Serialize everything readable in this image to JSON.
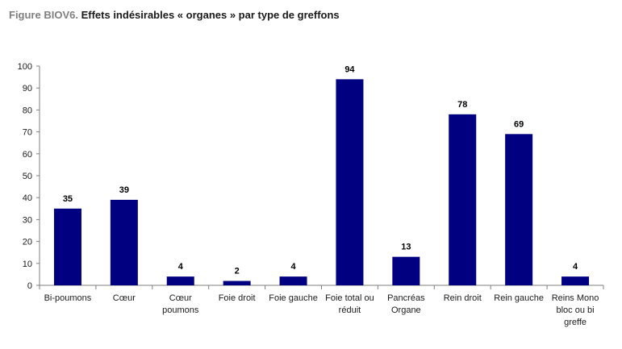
{
  "header": {
    "prefix": "Figure BIOV6.",
    "title": "Effets indésirables « organes » par type de greffons"
  },
  "chart_data": {
    "type": "bar",
    "title": "Figure BIOV6. Effets indésirables « organes » par type de greffons",
    "xlabel": "",
    "ylabel": "",
    "categories": [
      "Bi-poumons",
      "Cœur",
      "Cœur poumons",
      "Foie droit",
      "Foie gauche",
      "Foie total ou réduit",
      "Pancréas Organe",
      "Rein droit",
      "Rein gauche",
      "Reins Mono bloc ou bi greffe"
    ],
    "values": [
      35,
      39,
      4,
      2,
      4,
      94,
      13,
      78,
      69,
      4
    ],
    "ylim": [
      0,
      100
    ],
    "yticks": [
      0,
      10,
      20,
      30,
      40,
      50,
      60,
      70,
      80,
      90,
      100
    ],
    "data_labels": true,
    "grid": false,
    "legend": "none",
    "colors": {
      "bar": "#000080",
      "axis": "#7f7f7f",
      "text": "#1a1a1a"
    }
  }
}
